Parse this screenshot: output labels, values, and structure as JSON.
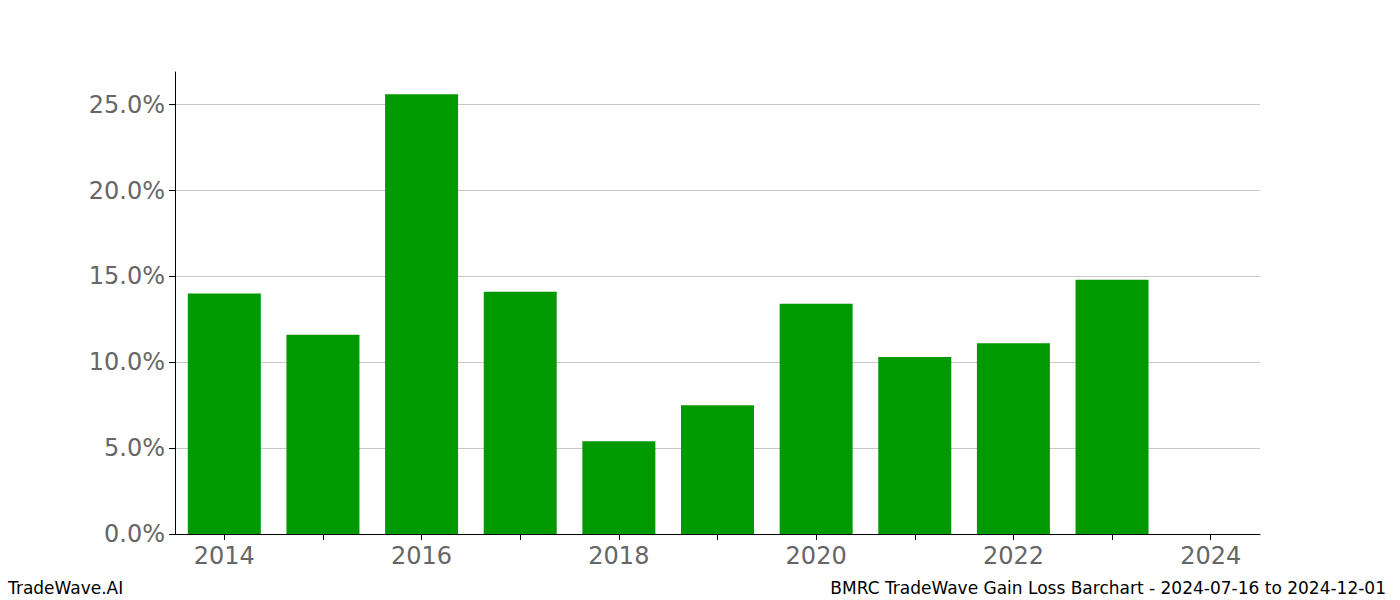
{
  "chart_data": {
    "type": "bar",
    "title": "BMRC TradeWave Gain Loss Barchart - 2024-07-16 to 2024-12-01",
    "annotations": [
      "TradeWave.AI"
    ],
    "categories": [
      "2014",
      null,
      "2016",
      null,
      "2018",
      null,
      "2020",
      null,
      "2022",
      null,
      "2024"
    ],
    "values": [
      14.0,
      11.6,
      25.6,
      14.1,
      5.4,
      7.5,
      13.4,
      10.3,
      11.1,
      14.8,
      null
    ],
    "color": "#009900",
    "ylim": [
      0,
      26.9
    ],
    "yticks": [
      {
        "value": 0,
        "label": "0.0%"
      },
      {
        "value": 5,
        "label": "5.0%"
      },
      {
        "value": 10,
        "label": "10.0%"
      },
      {
        "value": 15,
        "label": "15.0%"
      },
      {
        "value": 20,
        "label": "20.0%"
      },
      {
        "value": 25,
        "label": "25.0%"
      }
    ],
    "grid": true
  }
}
